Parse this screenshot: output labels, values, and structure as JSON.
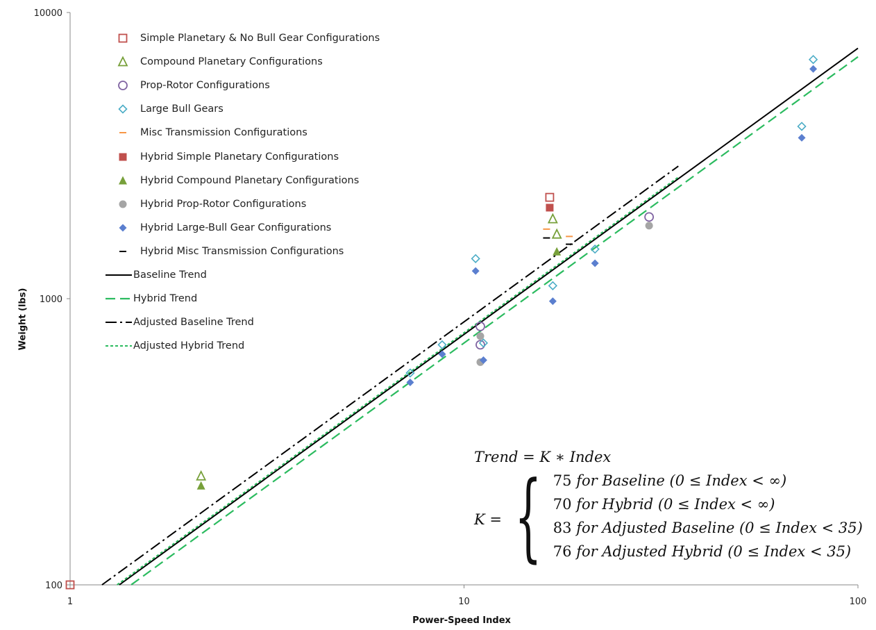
{
  "chart_data": {
    "type": "scatter",
    "xlabel": "Power-Speed Index",
    "ylabel": "Weight (lbs)",
    "xscale": "log",
    "yscale": "log",
    "xlim": [
      1,
      100
    ],
    "ylim": [
      100,
      10000
    ],
    "x_ticks": [
      "1",
      "10",
      "100"
    ],
    "y_ticks": [
      "100",
      "1000",
      "10000"
    ],
    "grid": false,
    "legend_position": "top-left",
    "series": [
      {
        "name": "Simple Planetary & No Bull Gear Configurations",
        "marker": "square-open",
        "color": "#c0504d",
        "points": [
          [
            1.0,
            100
          ],
          [
            16.5,
            2260
          ]
        ]
      },
      {
        "name": "Compound Planetary Configurations",
        "marker": "triangle-open",
        "color": "#77a03a",
        "points": [
          [
            2.15,
            240
          ],
          [
            16.8,
            1900
          ],
          [
            17.2,
            1680
          ]
        ]
      },
      {
        "name": "Prop-Rotor Configurations",
        "marker": "circle-open",
        "color": "#8064a2",
        "points": [
          [
            11.0,
            800
          ],
          [
            11.0,
            690
          ],
          [
            29.5,
            1930
          ]
        ]
      },
      {
        "name": "Large Bull Gears",
        "marker": "diamond-open",
        "color": "#4bacc6",
        "points": [
          [
            7.3,
            550
          ],
          [
            8.8,
            690
          ],
          [
            10.7,
            1380
          ],
          [
            11.2,
            700
          ],
          [
            16.8,
            1110
          ],
          [
            21.5,
            1490
          ],
          [
            72,
            4000
          ],
          [
            77,
            6850
          ]
        ]
      },
      {
        "name": "Misc Transmission Configurations",
        "marker": "dash",
        "color": "#f79646",
        "points": [
          [
            16.2,
            1750
          ],
          [
            18.5,
            1650
          ]
        ]
      },
      {
        "name": "Hybrid Simple Planetary Configurations",
        "marker": "square",
        "color": "#c0504d",
        "points": [
          [
            16.5,
            2080
          ]
        ]
      },
      {
        "name": "Hybrid Compound Planetary Configurations",
        "marker": "triangle",
        "color": "#77a03a",
        "points": [
          [
            2.15,
            222
          ],
          [
            17.2,
            1460
          ]
        ]
      },
      {
        "name": "Hybrid Prop-Rotor Configurations",
        "marker": "circle",
        "color": "#a5a5a5",
        "points": [
          [
            11.0,
            740
          ],
          [
            11.0,
            600
          ],
          [
            29.5,
            1800
          ]
        ]
      },
      {
        "name": "Hybrid Large-Bull Gear Configurations",
        "marker": "diamond",
        "color": "#5b7fcf",
        "points": [
          [
            7.3,
            510
          ],
          [
            8.8,
            640
          ],
          [
            10.7,
            1250
          ],
          [
            11.2,
            610
          ],
          [
            16.8,
            980
          ],
          [
            21.5,
            1330
          ],
          [
            72,
            3650
          ],
          [
            77,
            6350
          ]
        ]
      },
      {
        "name": "Hybrid Misc Transmission Configurations",
        "marker": "dash",
        "color": "#000000",
        "points": [
          [
            16.2,
            1630
          ],
          [
            18.5,
            1550
          ]
        ]
      },
      {
        "name": "Baseline Trend",
        "line": "solid",
        "color": "#000000",
        "K": 75,
        "range": [
          1.333,
          100
        ]
      },
      {
        "name": "Hybrid Trend",
        "line": "dash",
        "color": "#2bbb5f",
        "K": 70,
        "range": [
          1.43,
          100
        ]
      },
      {
        "name": "Adjusted Baseline Trend",
        "line": "dashdot",
        "color": "#000000",
        "K": 83,
        "range": [
          1.2,
          35
        ]
      },
      {
        "name": "Adjusted Hybrid Trend",
        "line": "dot",
        "color": "#2bbb5f",
        "K": 76,
        "range": [
          1.316,
          35
        ]
      }
    ]
  },
  "formula": {
    "title_lhs": "Trend",
    "title_eq": " = ",
    "title_rhs": "K ∗ Index",
    "k_lhs": "K =",
    "cases": [
      {
        "value": "75",
        "text": " for Baseline ",
        "cond": "(0 ≤ Index < ∞)"
      },
      {
        "value": "70",
        "text": " for Hybrid ",
        "cond": "(0 ≤ Index < ∞)"
      },
      {
        "value": "83",
        "text": " for Adjusted Baseline ",
        "cond": "(0 ≤ Index < 35)"
      },
      {
        "value": "76",
        "text": " for Adjusted Hybrid ",
        "cond": "(0 ≤ Index < 35)"
      }
    ]
  }
}
